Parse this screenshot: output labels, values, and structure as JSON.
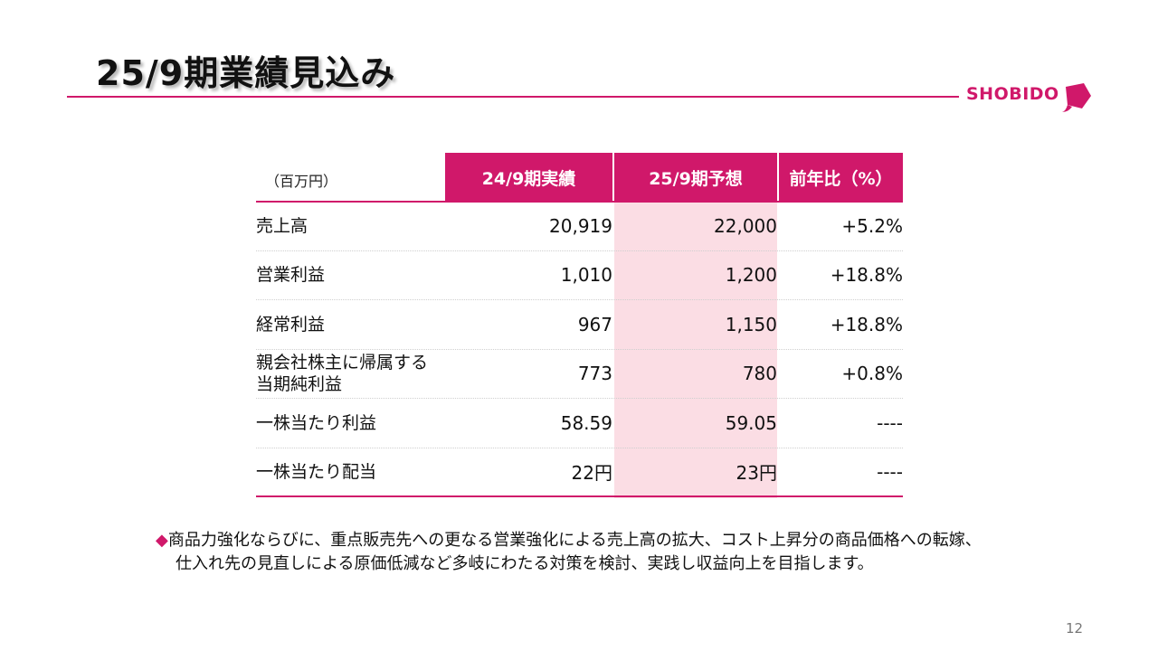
{
  "title": "25/9期業績見込み",
  "logo": {
    "text": "SHOBIDO",
    "color": "#d0186a"
  },
  "table": {
    "unit_label": "（百万円）",
    "headers": [
      "24/9期実績",
      "25/9期予想",
      "前年比（%）"
    ],
    "rows": [
      {
        "label": "売上高",
        "actual": "20,919",
        "forecast": "22,000",
        "yoy": "+5.2%"
      },
      {
        "label": "営業利益",
        "actual": "1,010",
        "forecast": "1,200",
        "yoy": "+18.8%"
      },
      {
        "label": "経常利益",
        "actual": "967",
        "forecast": "1,150",
        "yoy": "+18.8%"
      },
      {
        "label_line1": "親会社株主に帰属する",
        "label_line2": "当期純利益",
        "actual": "773",
        "forecast": "780",
        "yoy": "+0.8%"
      },
      {
        "label": "一株当たり利益",
        "actual": "58.59",
        "forecast": "59.05",
        "yoy": "----"
      },
      {
        "label": "一株当たり配当",
        "actual": "22円",
        "forecast": "23円",
        "yoy": "----"
      }
    ],
    "accent_color": "#d0186a",
    "highlight_color": "#fbdde4"
  },
  "note": {
    "bullet": "◆",
    "line1": "商品力強化ならびに、重点販売先への更なる営業強化による売上高の拡大、コスト上昇分の商品価格への転嫁、",
    "line2": "仕入れ先の見直しによる原価低減など多岐にわたる対策を検討、実践し収益向上を目指します。"
  },
  "page_number": "12"
}
